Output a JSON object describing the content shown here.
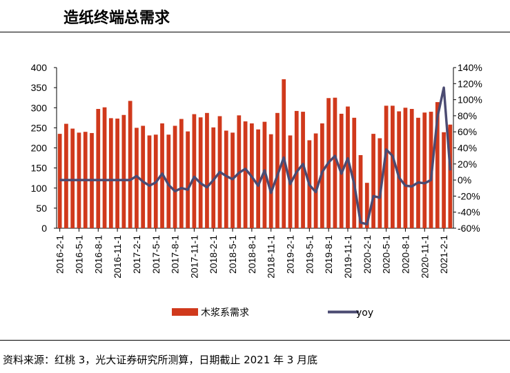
{
  "header": {
    "title": "造纸终端总需求"
  },
  "footer": {
    "source": "资料来源：红桃 3，光大证券研究所测算，日期截止 2021 年 3 月底"
  },
  "chart_data": {
    "type": "bar+line",
    "title": "造纸终端总需求",
    "x_tick_labels": [
      "2016-2-1",
      "2016-5-1",
      "2016-8-1",
      "2016-11-1",
      "2017-2-1",
      "2017-5-1",
      "2017-8-1",
      "2017-11-1",
      "2018-2-1",
      "2018-5-1",
      "2018-8-1",
      "2018-11-1",
      "2019-2-1",
      "2019-5-1",
      "2019-8-1",
      "2019-11-1",
      "2020-2-1",
      "2020-5-1",
      "2020-8-1",
      "2020-11-1",
      "2021-2-1"
    ],
    "left_axis": {
      "ylim": [
        0,
        400
      ],
      "ticks": [
        "0",
        "50",
        "100",
        "150",
        "200",
        "250",
        "300",
        "350",
        "400"
      ]
    },
    "right_axis": {
      "ylim": [
        -60,
        140
      ],
      "ticks": [
        "-60%",
        "-40%",
        "-20%",
        "0%",
        "20%",
        "40%",
        "60%",
        "80%",
        "100%",
        "120%",
        "140%"
      ]
    },
    "legend": {
      "bar_label": "木浆系需求",
      "line_label": "yoy",
      "placement": "bottom"
    },
    "colors": {
      "bar": "#D0391C",
      "line": "#4B4B72"
    },
    "series": [
      {
        "name": "木浆系需求",
        "type": "bar",
        "axis": "left",
        "values": [
          235,
          260,
          248,
          238,
          240,
          237,
          297,
          301,
          274,
          273,
          282,
          317,
          250,
          255,
          231,
          233,
          261,
          233,
          255,
          272,
          241,
          284,
          276,
          287,
          251,
          279,
          243,
          238,
          281,
          266,
          261,
          246,
          265,
          234,
          287,
          371,
          231,
          292,
          290,
          219,
          236,
          261,
          324,
          325,
          285,
          303,
          275,
          182,
          113,
          235,
          224,
          305,
          305,
          291,
          300,
          297,
          275,
          288,
          290,
          314,
          239,
          258
        ]
      },
      {
        "name": "yoy",
        "type": "line",
        "axis": "right",
        "values": [
          0,
          0,
          0,
          0,
          0,
          0,
          0,
          0,
          0,
          0,
          0,
          0,
          5,
          -2,
          -7,
          -3,
          8,
          -6,
          -14,
          -10,
          -12,
          4,
          -4,
          -9,
          0,
          10,
          5,
          1,
          9,
          14,
          4,
          -7,
          12,
          -16,
          6,
          28,
          -5,
          10,
          20,
          -6,
          -15,
          10,
          22,
          30,
          8,
          27,
          -5,
          -53,
          -55,
          -20,
          -22,
          38,
          30,
          3,
          -7,
          -8,
          -3,
          -4,
          0,
          78,
          115,
          12
        ]
      }
    ]
  }
}
